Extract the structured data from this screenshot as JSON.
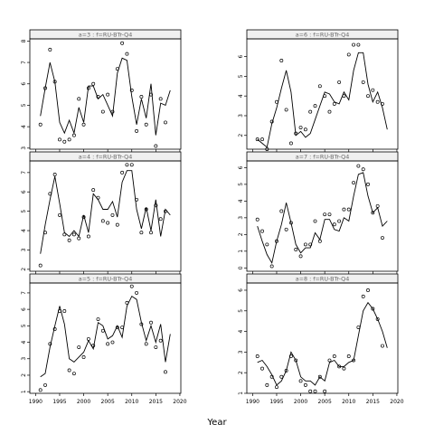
{
  "figure": {
    "xlabel": "Year"
  },
  "chart_data": [
    {
      "type": "scatter-line",
      "label": "a=3 : f=RU-BTr-Q4",
      "xlim": [
        1988.8,
        2020.2
      ],
      "ylim": [
        2.95,
        8.1
      ],
      "xticks": [
        1990,
        1995,
        2000,
        2005,
        2010,
        2015,
        2020
      ],
      "xtick_labels": [],
      "yticks": [
        3,
        4,
        5,
        6,
        7,
        8
      ],
      "line": {
        "x": [
          1991,
          1992,
          1993,
          1994,
          1995,
          1996,
          1997,
          1998,
          1999,
          2000,
          2001,
          2002,
          2003,
          2004,
          2005,
          2006,
          2007,
          2008,
          2009,
          2010,
          2011,
          2012,
          2013,
          2014,
          2015,
          2016,
          2017,
          2018
        ],
        "y": [
          4.5,
          5.8,
          7.0,
          6.1,
          4.2,
          3.7,
          4.3,
          3.7,
          4.9,
          4.2,
          5.9,
          5.9,
          5.3,
          5.5,
          5.0,
          4.5,
          6.5,
          7.2,
          7.1,
          5.4,
          4.1,
          5.3,
          4.4,
          6.0,
          3.6,
          5.1,
          5.0,
          5.7
        ]
      },
      "points": {
        "x": [
          1991,
          1992,
          1993,
          1994,
          1995,
          1996,
          1997,
          1998,
          1999,
          2000,
          2001,
          2002,
          2003,
          2004,
          2005,
          2006,
          2007,
          2008,
          2009,
          2010,
          2011,
          2012,
          2013,
          2014,
          2015,
          2016,
          2017
        ],
        "y": [
          4.1,
          5.8,
          7.6,
          6.1,
          3.4,
          3.3,
          3.4,
          3.6,
          5.3,
          4.1,
          5.8,
          6.0,
          5.4,
          4.7,
          5.5,
          4.7,
          6.7,
          7.9,
          7.4,
          5.7,
          3.8,
          5.4,
          4.1,
          5.5,
          3.1,
          5.3,
          4.2
        ]
      }
    },
    {
      "type": "scatter-line",
      "label": "a=6 : f=RU-BTr-Q4",
      "xlim": [
        1988.8,
        2020.2
      ],
      "ylim": [
        1.3,
        6.9
      ],
      "xticks": [
        1990,
        1995,
        2000,
        2005,
        2010,
        2015,
        2020
      ],
      "xtick_labels": [],
      "yticks": [
        2,
        3,
        4,
        5,
        6
      ],
      "line": {
        "x": [
          1991,
          1992,
          1993,
          1994,
          1995,
          1996,
          1997,
          1998,
          1999,
          2000,
          2001,
          2002,
          2003,
          2004,
          2005,
          2006,
          2007,
          2008,
          2009,
          2010,
          2011,
          2012,
          2013,
          2014,
          2015,
          2016,
          2017,
          2018
        ],
        "y": [
          1.8,
          1.6,
          1.4,
          2.6,
          3.4,
          4.4,
          5.3,
          4.2,
          2.0,
          2.2,
          1.9,
          2.1,
          2.8,
          3.5,
          4.2,
          4.1,
          3.7,
          3.6,
          4.2,
          3.8,
          5.3,
          6.2,
          6.2,
          4.6,
          3.7,
          4.2,
          3.4,
          2.3
        ]
      },
      "points": {
        "x": [
          1991,
          1992,
          1993,
          1994,
          1995,
          1996,
          1997,
          1998,
          1999,
          2000,
          2001,
          2002,
          2003,
          2004,
          2005,
          2006,
          2007,
          2008,
          2009,
          2010,
          2011,
          2012,
          2013,
          2014,
          2015,
          2016,
          2017
        ],
        "y": [
          1.8,
          1.8,
          1.3,
          2.7,
          3.7,
          5.8,
          3.3,
          1.6,
          2.1,
          2.4,
          2.3,
          3.2,
          3.5,
          4.5,
          4.0,
          3.2,
          3.6,
          4.7,
          4.0,
          6.1,
          6.6,
          6.6,
          4.7,
          4.0,
          4.3,
          3.7,
          3.6
        ]
      }
    },
    {
      "type": "scatter-line",
      "label": "a=4 : f=RU-BTr-Q4",
      "xlim": [
        1988.8,
        2020.2
      ],
      "ylim": [
        1.9,
        7.6
      ],
      "xticks": [
        1990,
        1995,
        2000,
        2005,
        2010,
        2015,
        2020
      ],
      "xtick_labels": [],
      "yticks": [
        2,
        3,
        4,
        5,
        6,
        7
      ],
      "line": {
        "x": [
          1991,
          1992,
          1993,
          1994,
          1995,
          1996,
          1997,
          1998,
          1999,
          2000,
          2001,
          2002,
          2003,
          2004,
          2005,
          2006,
          2007,
          2008,
          2009,
          2010,
          2011,
          2012,
          2013,
          2014,
          2015,
          2016,
          2017,
          2018
        ],
        "y": [
          2.8,
          4.3,
          5.6,
          6.8,
          5.4,
          3.9,
          3.7,
          4.0,
          3.7,
          4.8,
          3.9,
          5.9,
          5.6,
          5.1,
          5.1,
          5.5,
          4.7,
          6.5,
          7.1,
          7.1,
          5.1,
          4.1,
          5.2,
          4.0,
          5.6,
          3.7,
          5.1,
          4.8
        ]
      },
      "points": {
        "x": [
          1991,
          1992,
          1993,
          1994,
          1995,
          1996,
          1997,
          1998,
          1999,
          2000,
          2001,
          2002,
          2003,
          2004,
          2005,
          2006,
          2007,
          2008,
          2009,
          2010,
          2011,
          2012,
          2013,
          2014,
          2015,
          2016,
          2017
        ],
        "y": [
          2.2,
          3.9,
          5.9,
          6.9,
          4.8,
          3.8,
          3.5,
          3.8,
          3.6,
          4.7,
          3.7,
          6.1,
          5.7,
          4.5,
          4.4,
          4.8,
          4.3,
          7.0,
          7.4,
          7.4,
          5.6,
          3.9,
          5.1,
          3.9,
          5.3,
          4.6,
          5.0
        ]
      }
    },
    {
      "type": "scatter-line",
      "label": "a=7 : f=RU-BTr-Q4",
      "xlim": [
        1988.8,
        2020.2
      ],
      "ylim": [
        -0.2,
        6.4
      ],
      "xticks": [
        1990,
        1995,
        2000,
        2005,
        2010,
        2015,
        2020
      ],
      "xtick_labels": [],
      "yticks": [
        0,
        1,
        2,
        3,
        4,
        5,
        6
      ],
      "line": {
        "x": [
          1991,
          1992,
          1993,
          1994,
          1995,
          1996,
          1997,
          1998,
          1999,
          2000,
          2001,
          2002,
          2003,
          2004,
          2005,
          2006,
          2007,
          2008,
          2009,
          2010,
          2011,
          2012,
          2013,
          2014,
          2015,
          2016,
          2017,
          2018
        ],
        "y": [
          2.5,
          1.6,
          0.8,
          0.3,
          1.6,
          2.6,
          3.9,
          2.7,
          1.4,
          0.9,
          1.2,
          1.2,
          2.1,
          1.7,
          2.9,
          2.9,
          2.3,
          2.2,
          3.0,
          2.8,
          4.3,
          5.6,
          5.7,
          4.3,
          3.3,
          3.6,
          2.5,
          2.8
        ]
      },
      "points": {
        "x": [
          1991,
          1992,
          1993,
          1994,
          1995,
          1996,
          1997,
          1998,
          1999,
          2000,
          2001,
          2002,
          2003,
          2004,
          2005,
          2006,
          2007,
          2008,
          2009,
          2010,
          2011,
          2012,
          2013,
          2014,
          2015,
          2016,
          2017
        ],
        "y": [
          2.9,
          2.2,
          1.4,
          0.1,
          1.6,
          3.4,
          2.3,
          2.7,
          1.1,
          0.7,
          1.4,
          1.4,
          2.8,
          1.6,
          3.2,
          3.2,
          2.6,
          2.8,
          3.5,
          3.5,
          5.1,
          6.1,
          5.9,
          5.0,
          3.3,
          3.7,
          1.8
        ]
      }
    },
    {
      "type": "scatter-line",
      "label": "a=5 : f=RU-BTr-Q4",
      "xlim": [
        1988.8,
        2020.2
      ],
      "ylim": [
        0.9,
        7.6
      ],
      "xticks": [
        1990,
        1995,
        2000,
        2005,
        2010,
        2015,
        2020
      ],
      "xtick_labels": [
        "1990",
        "1995",
        "2000",
        "2005",
        "2010",
        "2015",
        "2020"
      ],
      "yticks": [
        1,
        2,
        3,
        4,
        5,
        6,
        7
      ],
      "line": {
        "x": [
          1991,
          1992,
          1993,
          1994,
          1995,
          1996,
          1997,
          1998,
          1999,
          2000,
          2001,
          2002,
          2003,
          2004,
          2005,
          2006,
          2007,
          2008,
          2009,
          2010,
          2011,
          2012,
          2013,
          2014,
          2015,
          2016,
          2017,
          2018
        ],
        "y": [
          1.9,
          2.1,
          3.7,
          5.0,
          6.2,
          5.1,
          3.0,
          2.8,
          3.1,
          3.4,
          4.1,
          3.6,
          5.2,
          5.0,
          4.2,
          4.4,
          5.0,
          4.3,
          6.2,
          6.8,
          6.6,
          5.2,
          4.1,
          5.0,
          4.0,
          5.1,
          2.8,
          4.5
        ]
      },
      "points": {
        "x": [
          1991,
          1992,
          1993,
          1994,
          1995,
          1996,
          1997,
          1998,
          1999,
          2000,
          2001,
          2002,
          2003,
          2004,
          2005,
          2006,
          2007,
          2008,
          2009,
          2010,
          2011,
          2012,
          2013,
          2014,
          2015,
          2016,
          2017
        ],
        "y": [
          1.1,
          1.4,
          3.9,
          4.8,
          5.9,
          5.9,
          2.3,
          2.1,
          3.7,
          3.1,
          4.2,
          3.8,
          5.4,
          4.7,
          3.9,
          4.0,
          4.9,
          4.9,
          6.4,
          7.4,
          7.0,
          5.1,
          3.9,
          5.2,
          3.7,
          4.1,
          2.2
        ]
      }
    },
    {
      "type": "scatter-line",
      "label": "a=8 : f=RU-BTr-Q4",
      "xlim": [
        1988.8,
        2020.2
      ],
      "ylim": [
        1.0,
        6.35
      ],
      "xticks": [
        1990,
        1995,
        2000,
        2005,
        2010,
        2015,
        2020
      ],
      "xtick_labels": [
        "1990",
        "1995",
        "2000",
        "2005",
        "2010",
        "2015",
        "2020"
      ],
      "yticks": [
        1,
        2,
        3,
        4,
        5,
        6
      ],
      "line": {
        "x": [
          1991,
          1992,
          1993,
          1994,
          1995,
          1996,
          1997,
          1998,
          1999,
          2000,
          2001,
          2002,
          2003,
          2004,
          2005,
          2006,
          2007,
          2008,
          2009,
          2010,
          2011,
          2012,
          2013,
          2014,
          2015,
          2016,
          2017,
          2018
        ],
        "y": [
          2.5,
          2.6,
          2.3,
          1.9,
          1.4,
          1.6,
          2.1,
          3.0,
          2.6,
          1.8,
          1.6,
          1.6,
          1.4,
          1.8,
          1.6,
          2.5,
          2.6,
          2.3,
          2.3,
          2.5,
          2.6,
          3.8,
          5.0,
          5.4,
          5.1,
          4.6,
          4.0,
          3.2
        ]
      },
      "points": {
        "x": [
          1991,
          1992,
          1993,
          1994,
          1995,
          1996,
          1997,
          1998,
          1999,
          2000,
          2001,
          2002,
          2003,
          2004,
          2005,
          2006,
          2007,
          2008,
          2009,
          2010,
          2011,
          2012,
          2013,
          2014,
          2015,
          2016,
          2017
        ],
        "y": [
          2.8,
          2.2,
          1.4,
          1.8,
          1.3,
          1.8,
          2.1,
          2.8,
          2.6,
          1.6,
          1.4,
          1.1,
          1.1,
          1.8,
          1.1,
          2.6,
          2.8,
          2.3,
          2.2,
          2.8,
          2.6,
          4.2,
          5.7,
          6.0,
          5.1,
          4.6,
          3.3
        ]
      }
    }
  ]
}
